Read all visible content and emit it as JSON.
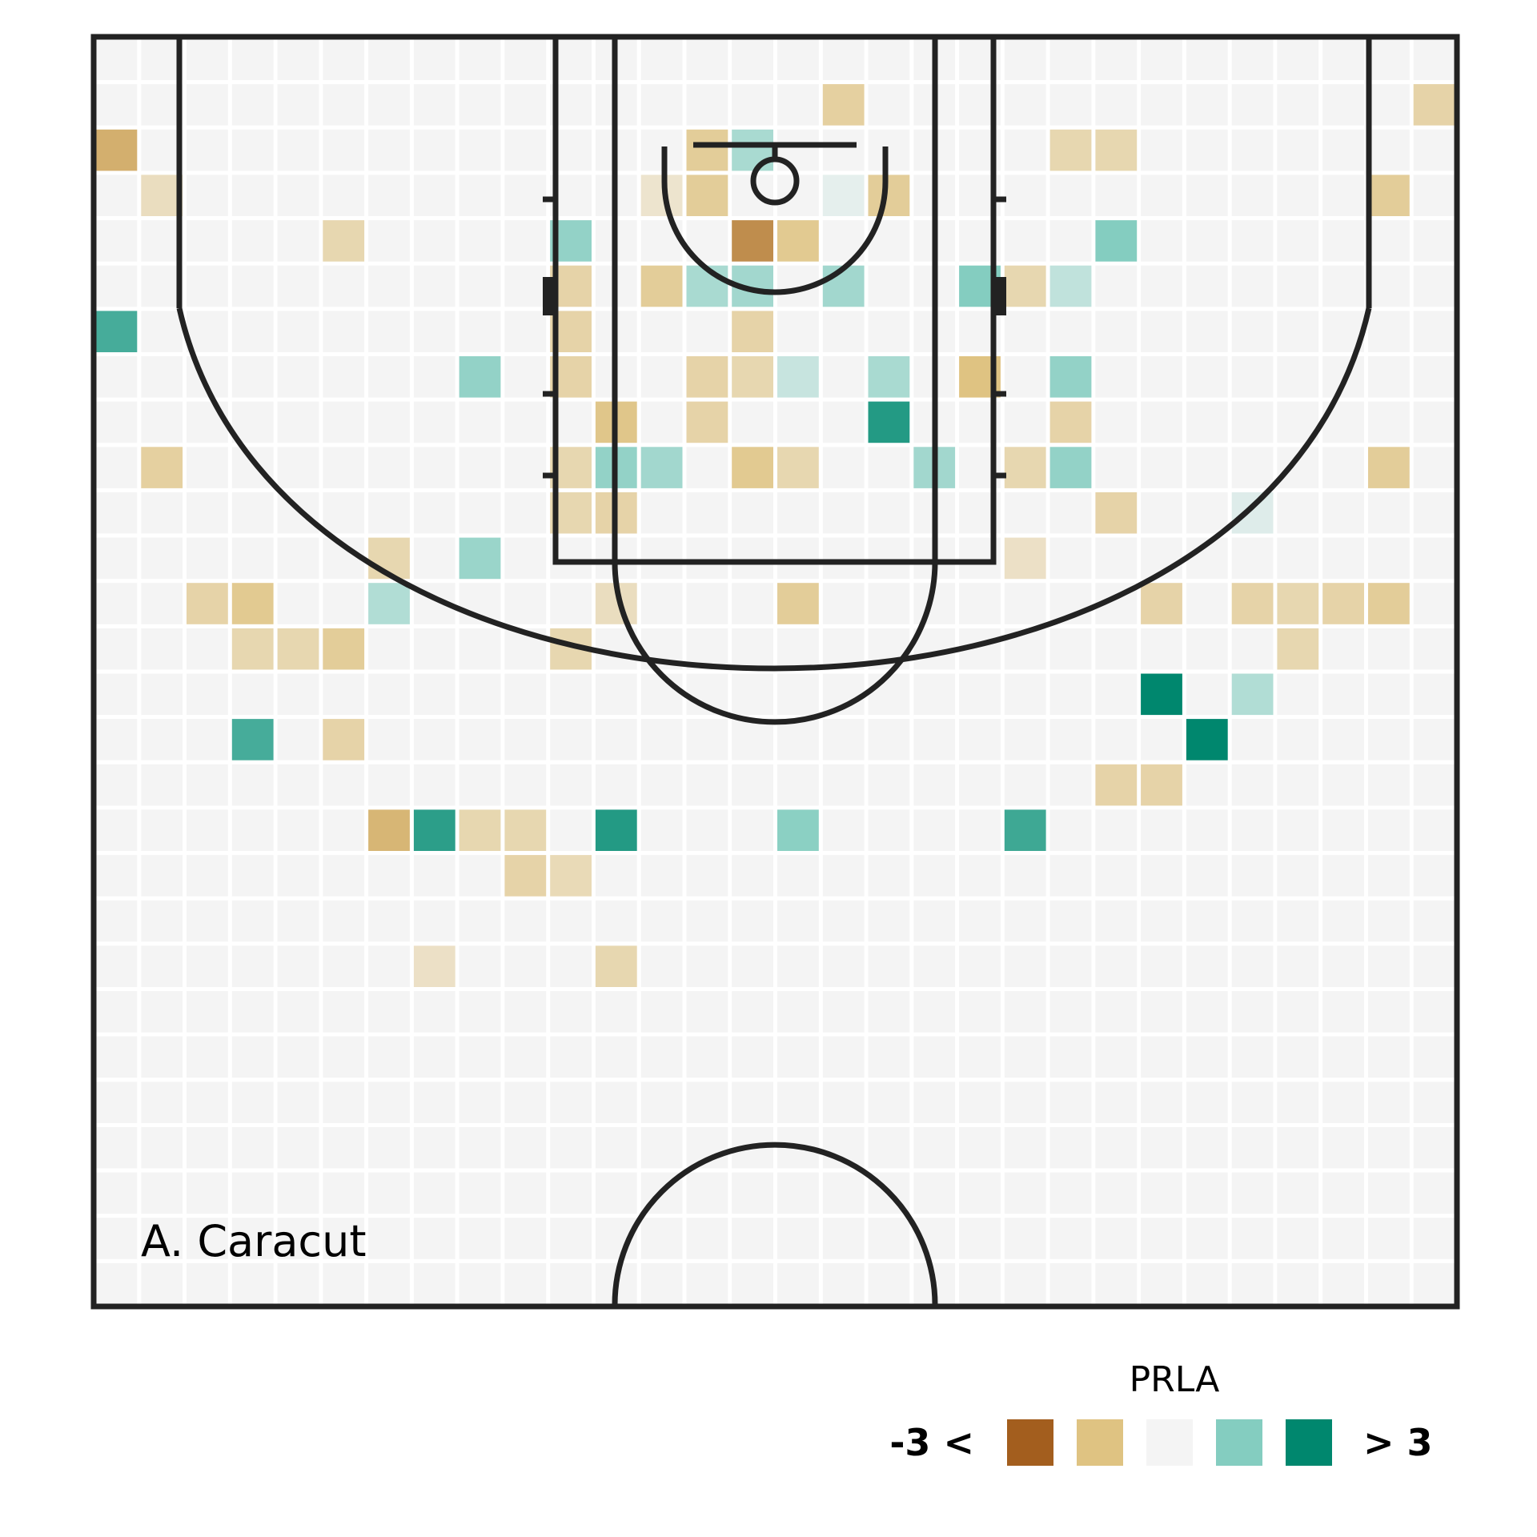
{
  "chart_data": {
    "type": "heatmap",
    "title": "",
    "player": "A. Caracut",
    "grid": {
      "cols": 30,
      "rows": 28
    },
    "background_value": 0,
    "scale": {
      "title": "PRLA",
      "min_label": "-3 <",
      "max_label": "> 3",
      "min": -3,
      "max": 3,
      "colors": [
        "#a35e1e",
        "#dfc382",
        "#f4f4f4",
        "#84cdc0",
        "#00876e"
      ]
    },
    "cells": [
      {
        "col": 16,
        "row": 1,
        "value": -1.1
      },
      {
        "col": 29,
        "row": 1,
        "value": -1.0
      },
      {
        "col": 0,
        "row": 2,
        "value": -1.8
      },
      {
        "col": 13,
        "row": 2,
        "value": -1.2
      },
      {
        "col": 14,
        "row": 2,
        "value": 1.0
      },
      {
        "col": 21,
        "row": 2,
        "value": -0.9
      },
      {
        "col": 22,
        "row": 2,
        "value": -0.9
      },
      {
        "col": 1,
        "row": 3,
        "value": -0.7
      },
      {
        "col": 12,
        "row": 3,
        "value": -0.5
      },
      {
        "col": 13,
        "row": 3,
        "value": -1.2
      },
      {
        "col": 16,
        "row": 3,
        "value": 0.2
      },
      {
        "col": 17,
        "row": 3,
        "value": -1.2
      },
      {
        "col": 28,
        "row": 3,
        "value": -1.2
      },
      {
        "col": 5,
        "row": 4,
        "value": -0.9
      },
      {
        "col": 10,
        "row": 4,
        "value": 1.3
      },
      {
        "col": 14,
        "row": 4,
        "value": -2.3
      },
      {
        "col": 15,
        "row": 4,
        "value": -1.3
      },
      {
        "col": 22,
        "row": 4,
        "value": 1.5
      },
      {
        "col": 10,
        "row": 5,
        "value": -1.0
      },
      {
        "col": 12,
        "row": 5,
        "value": -1.2
      },
      {
        "col": 13,
        "row": 5,
        "value": 1.0
      },
      {
        "col": 14,
        "row": 5,
        "value": 1.1
      },
      {
        "col": 16,
        "row": 5,
        "value": 1.1
      },
      {
        "col": 19,
        "row": 5,
        "value": 1.5
      },
      {
        "col": 20,
        "row": 5,
        "value": -0.9
      },
      {
        "col": 21,
        "row": 5,
        "value": 0.7
      },
      {
        "col": 0,
        "row": 6,
        "value": 2.2
      },
      {
        "col": 10,
        "row": 6,
        "value": -1.0
      },
      {
        "col": 14,
        "row": 6,
        "value": -1.0
      },
      {
        "col": 8,
        "row": 7,
        "value": 1.3
      },
      {
        "col": 10,
        "row": 7,
        "value": -1.0
      },
      {
        "col": 13,
        "row": 7,
        "value": -1.0
      },
      {
        "col": 14,
        "row": 7,
        "value": -0.9
      },
      {
        "col": 15,
        "row": 7,
        "value": 0.6
      },
      {
        "col": 17,
        "row": 7,
        "value": 1.0
      },
      {
        "col": 19,
        "row": 7,
        "value": -1.5
      },
      {
        "col": 21,
        "row": 7,
        "value": 1.3
      },
      {
        "col": 11,
        "row": 8,
        "value": -1.4
      },
      {
        "col": 13,
        "row": 8,
        "value": -1.0
      },
      {
        "col": 17,
        "row": 8,
        "value": 2.6
      },
      {
        "col": 21,
        "row": 8,
        "value": -1.0
      },
      {
        "col": 1,
        "row": 9,
        "value": -1.1
      },
      {
        "col": 10,
        "row": 9,
        "value": -0.9
      },
      {
        "col": 11,
        "row": 9,
        "value": 1.3
      },
      {
        "col": 12,
        "row": 9,
        "value": 1.1
      },
      {
        "col": 14,
        "row": 9,
        "value": -1.3
      },
      {
        "col": 15,
        "row": 9,
        "value": -0.9
      },
      {
        "col": 18,
        "row": 9,
        "value": 1.1
      },
      {
        "col": 20,
        "row": 9,
        "value": -0.9
      },
      {
        "col": 21,
        "row": 9,
        "value": 1.3
      },
      {
        "col": 28,
        "row": 9,
        "value": -1.2
      },
      {
        "col": 10,
        "row": 10,
        "value": -0.9
      },
      {
        "col": 11,
        "row": 10,
        "value": -1.0
      },
      {
        "col": 22,
        "row": 10,
        "value": -1.0
      },
      {
        "col": 25,
        "row": 10,
        "value": 0.3
      },
      {
        "col": 6,
        "row": 11,
        "value": -0.9
      },
      {
        "col": 8,
        "row": 11,
        "value": 1.2
      },
      {
        "col": 20,
        "row": 11,
        "value": -0.6
      },
      {
        "col": 2,
        "row": 12,
        "value": -1.0
      },
      {
        "col": 3,
        "row": 12,
        "value": -1.3
      },
      {
        "col": 6,
        "row": 12,
        "value": 0.9
      },
      {
        "col": 11,
        "row": 12,
        "value": -0.7
      },
      {
        "col": 15,
        "row": 12,
        "value": -1.2
      },
      {
        "col": 23,
        "row": 12,
        "value": -1.0
      },
      {
        "col": 25,
        "row": 12,
        "value": -1.0
      },
      {
        "col": 26,
        "row": 12,
        "value": -0.9
      },
      {
        "col": 27,
        "row": 12,
        "value": -1.0
      },
      {
        "col": 28,
        "row": 12,
        "value": -1.2
      },
      {
        "col": 3,
        "row": 13,
        "value": -0.9
      },
      {
        "col": 4,
        "row": 13,
        "value": -0.9
      },
      {
        "col": 5,
        "row": 13,
        "value": -1.2
      },
      {
        "col": 10,
        "row": 13,
        "value": -0.9
      },
      {
        "col": 26,
        "row": 13,
        "value": -0.9
      },
      {
        "col": 23,
        "row": 14,
        "value": 3.0
      },
      {
        "col": 25,
        "row": 14,
        "value": 0.9
      },
      {
        "col": 3,
        "row": 15,
        "value": 2.2
      },
      {
        "col": 5,
        "row": 15,
        "value": -1.0
      },
      {
        "col": 24,
        "row": 15,
        "value": 3.0
      },
      {
        "col": 22,
        "row": 16,
        "value": -1.0
      },
      {
        "col": 23,
        "row": 16,
        "value": -1.0
      },
      {
        "col": 6,
        "row": 17,
        "value": -1.7
      },
      {
        "col": 7,
        "row": 17,
        "value": 2.5
      },
      {
        "col": 8,
        "row": 17,
        "value": -0.9
      },
      {
        "col": 9,
        "row": 17,
        "value": -0.9
      },
      {
        "col": 11,
        "row": 17,
        "value": 2.6
      },
      {
        "col": 15,
        "row": 17,
        "value": 1.4
      },
      {
        "col": 20,
        "row": 17,
        "value": 2.3
      },
      {
        "col": 9,
        "row": 18,
        "value": -1.0
      },
      {
        "col": 10,
        "row": 18,
        "value": -0.8
      },
      {
        "col": 7,
        "row": 20,
        "value": -0.6
      },
      {
        "col": 11,
        "row": 20,
        "value": -0.9
      }
    ]
  }
}
